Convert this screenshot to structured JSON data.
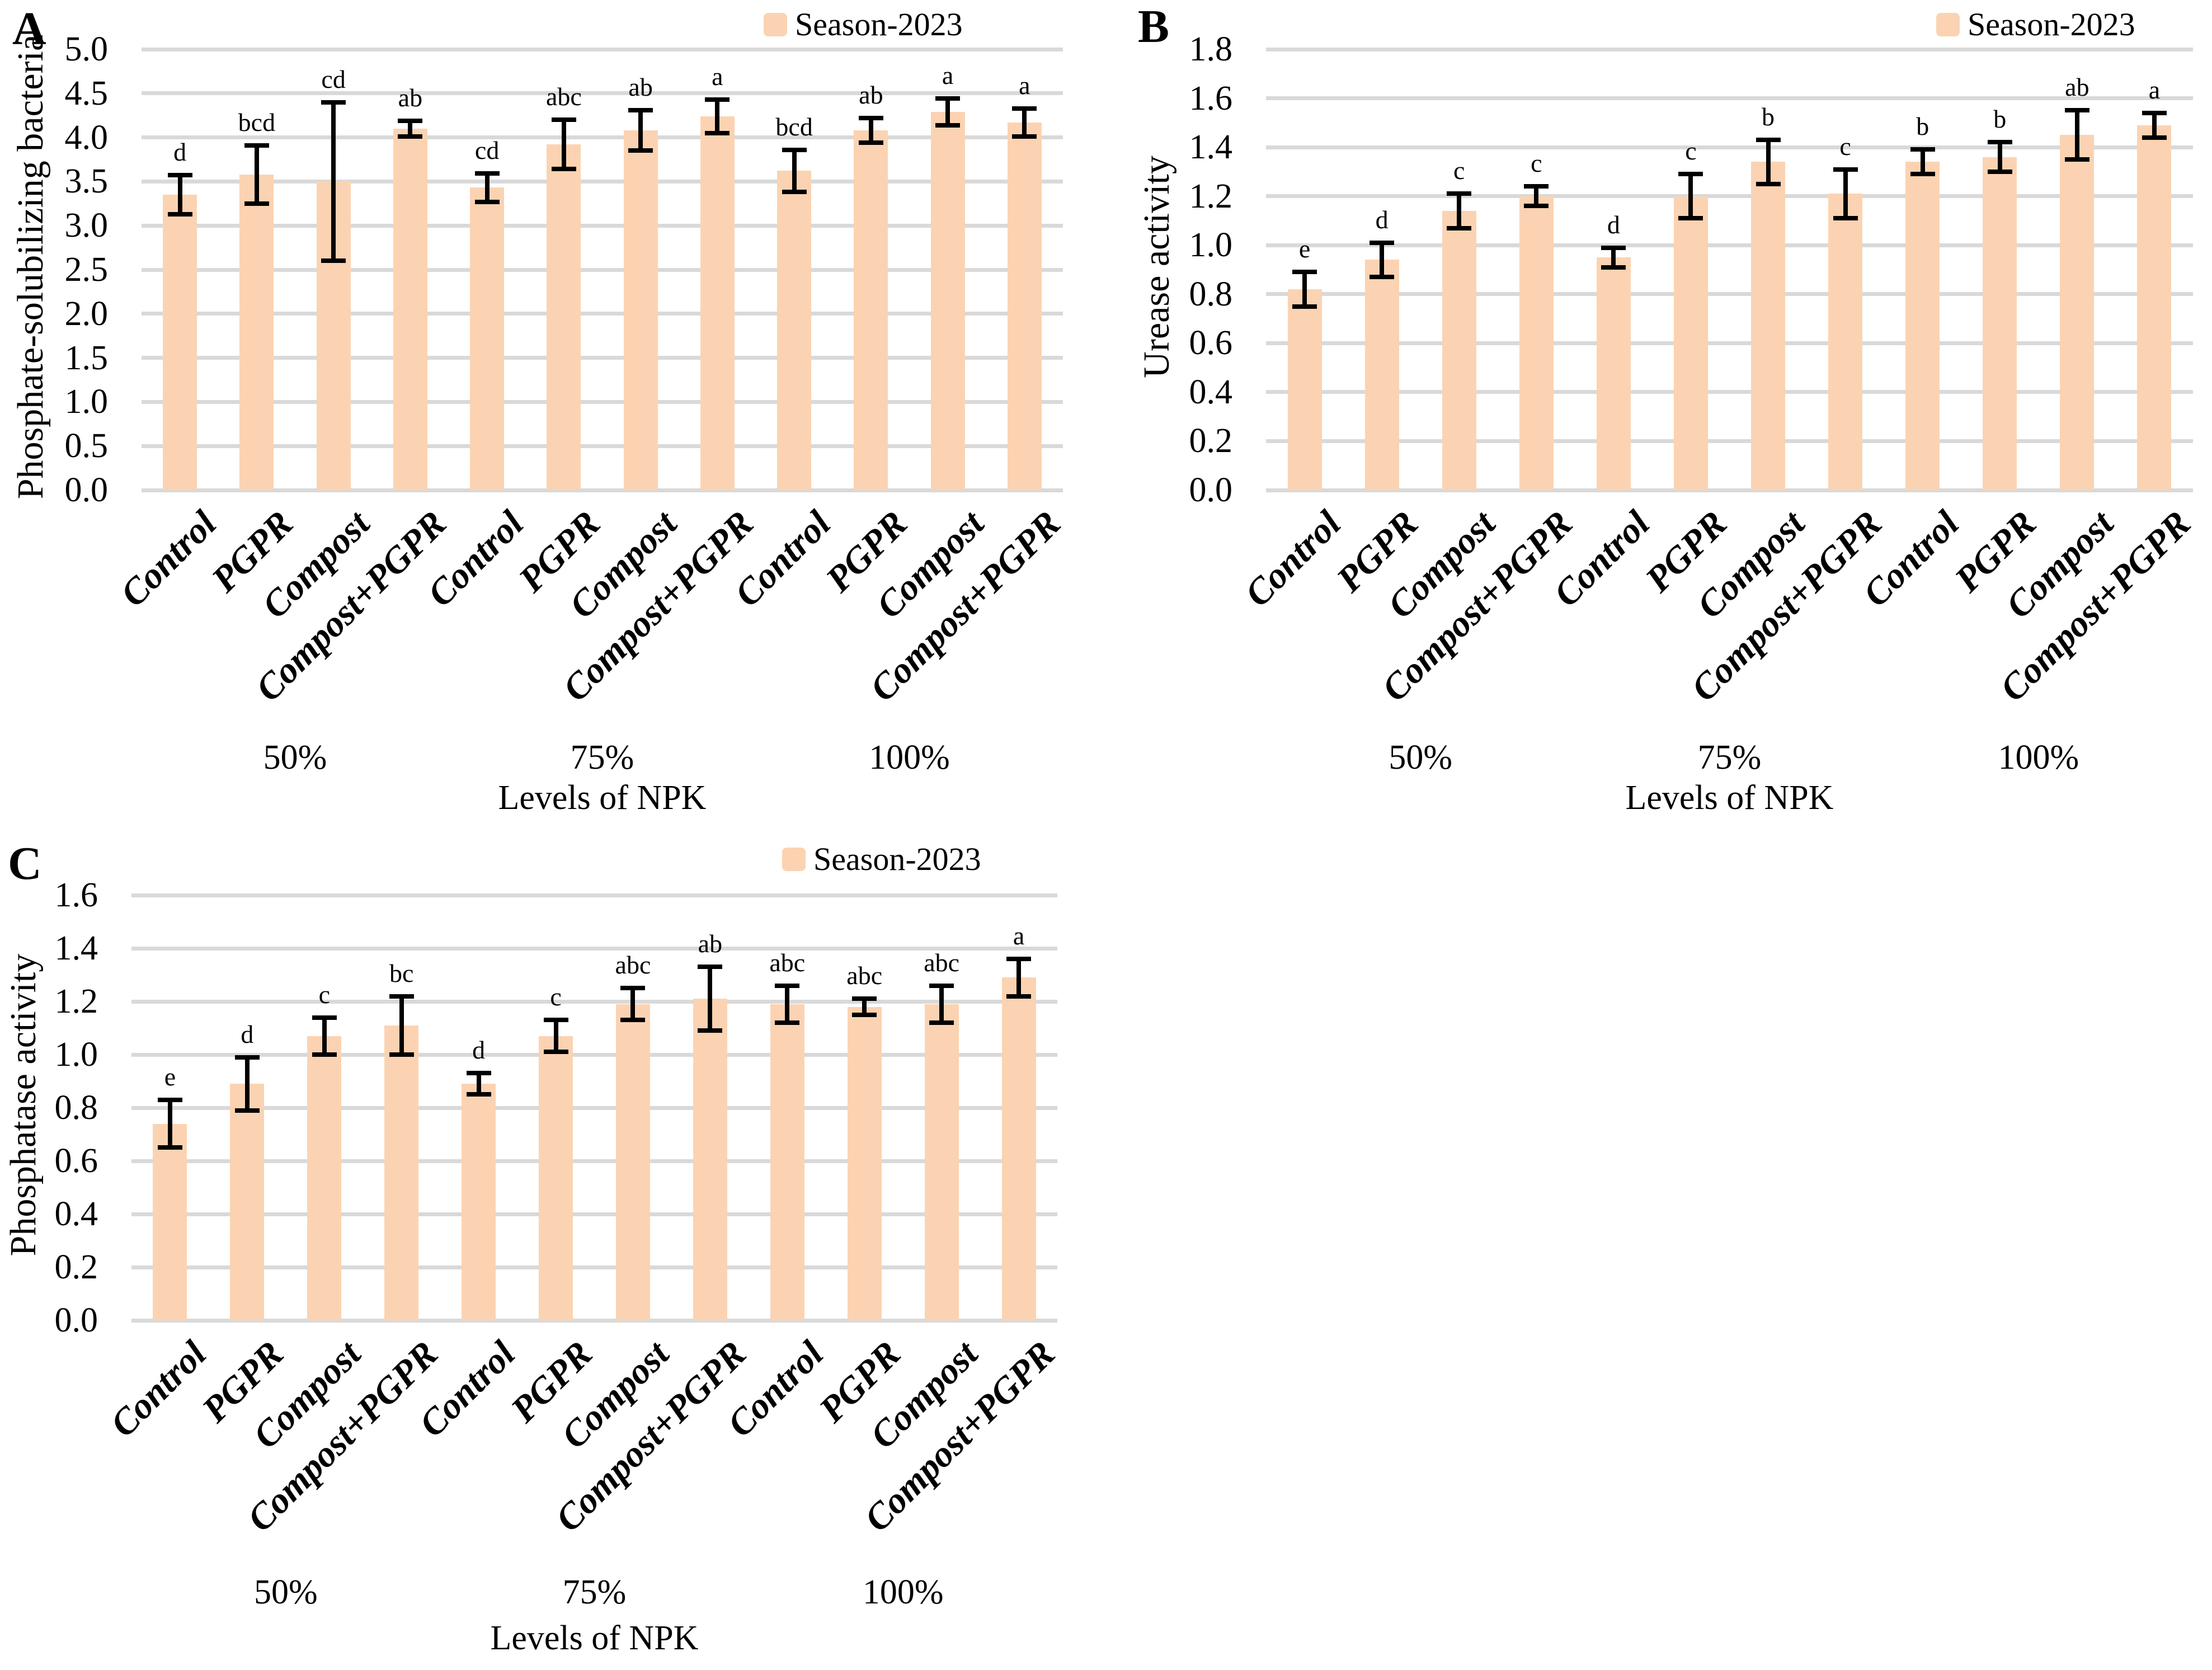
{
  "figure": {
    "background": "#FFFFFF",
    "description": "Three-panel bar figure: soil microbial and enzyme responses under NPK levels and amendments, Season-2023"
  },
  "colors": {
    "bar_fill": "#FBD3B2",
    "gridline": "#D9D9D9",
    "error_bar": "#000000",
    "text": "#000000"
  },
  "chart_data": [
    {
      "type": "bar",
      "panel_letter": "A",
      "ylabel": "Phosphate-solubilizing bacteria",
      "xlabel": "Levels of NPK",
      "grid": "horizontal",
      "legend_position": "top-right",
      "ylim": [
        0,
        5.0
      ],
      "ytick_step": 0.5,
      "yticks": [
        "5.0",
        "4.5",
        "4.0",
        "3.5",
        "3.0",
        "2.5",
        "2.0",
        "1.5",
        "1.0",
        "0.5",
        "0.0"
      ],
      "categories": [
        "Control",
        "PGPR",
        "Compost",
        "Compost+PGPR",
        "Control",
        "PGPR",
        "Compost",
        "Compost+PGPR",
        "Control",
        "PGPR",
        "Compost",
        "Compost+PGPR"
      ],
      "group_labels": [
        "50%",
        "75%",
        "100%"
      ],
      "series": [
        {
          "name": "Season-2023",
          "values": [
            3.35,
            3.58,
            3.5,
            4.1,
            3.43,
            3.92,
            4.08,
            4.24,
            3.62,
            4.08,
            4.29,
            4.17
          ],
          "errors": [
            0.22,
            0.33,
            0.9,
            0.09,
            0.16,
            0.28,
            0.23,
            0.19,
            0.24,
            0.14,
            0.15,
            0.16
          ],
          "sig_letters": [
            "d",
            "bcd",
            "cd",
            "ab",
            "cd",
            "abc",
            "ab",
            "a",
            "bcd",
            "ab",
            "a",
            "a"
          ]
        }
      ]
    },
    {
      "type": "bar",
      "panel_letter": "B",
      "ylabel": "Urease activity",
      "xlabel": "Levels of NPK",
      "grid": "horizontal",
      "legend_position": "top-right",
      "ylim": [
        0,
        1.8
      ],
      "ytick_step": 0.2,
      "yticks": [
        "1.8",
        "1.6",
        "1.4",
        "1.2",
        "1.0",
        "0.8",
        "0.6",
        "0.4",
        "0.2",
        "0.0"
      ],
      "categories": [
        "Control",
        "PGPR",
        "Compost",
        "Compost+PGPR",
        "Control",
        "PGPR",
        "Compost",
        "Compost+PGPR",
        "Control",
        "PGPR",
        "Compost",
        "Compost+PGPR"
      ],
      "group_labels": [
        "50%",
        "75%",
        "100%"
      ],
      "series": [
        {
          "name": "Season-2023",
          "values": [
            0.82,
            0.94,
            1.14,
            1.2,
            0.95,
            1.2,
            1.34,
            1.21,
            1.34,
            1.36,
            1.45,
            1.49
          ],
          "errors": [
            0.07,
            0.07,
            0.07,
            0.04,
            0.04,
            0.09,
            0.09,
            0.1,
            0.05,
            0.06,
            0.1,
            0.05
          ],
          "sig_letters": [
            "e",
            "d",
            "c",
            "c",
            "d",
            "c",
            "b",
            "c",
            "b",
            "b",
            "ab",
            "a"
          ]
        }
      ]
    },
    {
      "type": "bar",
      "panel_letter": "C",
      "ylabel": "Phosphatase activity",
      "xlabel": "Levels of NPK",
      "grid": "horizontal",
      "legend_position": "top-right",
      "ylim": [
        0,
        1.6
      ],
      "ytick_step": 0.2,
      "yticks": [
        "1.6",
        "1.4",
        "1.2",
        "1.0",
        "0.8",
        "0.6",
        "0.4",
        "0.2",
        "0.0"
      ],
      "categories": [
        "Control",
        "PGPR",
        "Compost",
        "Compost+PGPR",
        "Control",
        "PGPR",
        "Compost",
        "Compost+PGPR",
        "Control",
        "PGPR",
        "Compost",
        "Compost+PGPR"
      ],
      "group_labels": [
        "50%",
        "75%",
        "100%"
      ],
      "series": [
        {
          "name": "Season-2023",
          "values": [
            0.74,
            0.89,
            1.07,
            1.11,
            0.89,
            1.07,
            1.19,
            1.21,
            1.19,
            1.18,
            1.19,
            1.29
          ],
          "errors": [
            0.09,
            0.1,
            0.07,
            0.11,
            0.04,
            0.06,
            0.06,
            0.12,
            0.07,
            0.03,
            0.07,
            0.07
          ],
          "sig_letters": [
            "e",
            "d",
            "c",
            "bc",
            "d",
            "c",
            "abc",
            "ab",
            "abc",
            "abc",
            "abc",
            "a"
          ]
        }
      ]
    }
  ]
}
